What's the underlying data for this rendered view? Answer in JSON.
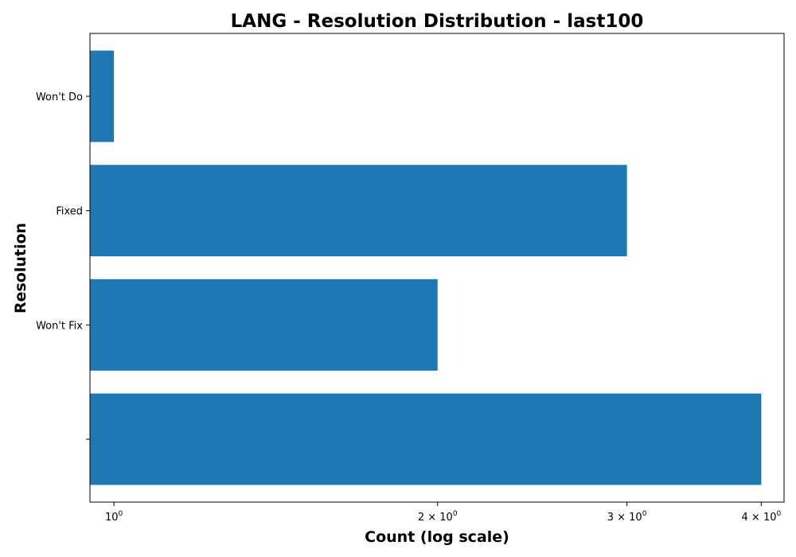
{
  "chart_data": {
    "type": "bar",
    "orientation": "horizontal",
    "title": "LANG - Resolution Distribution - last100",
    "xlabel": "Count (log scale)",
    "ylabel": "Resolution",
    "x_scale": "log",
    "xlim": [
      0.95,
      4.2
    ],
    "categories": [
      "",
      "Won't Fix",
      "Fixed",
      "Won't Do"
    ],
    "values": [
      4,
      2,
      3,
      1
    ],
    "x_ticks": [
      {
        "value": 1,
        "base": "10",
        "exp": "0"
      },
      {
        "value": 2,
        "base": "2 × 10",
        "exp": "0"
      },
      {
        "value": 3,
        "base": "3 × 10",
        "exp": "0"
      },
      {
        "value": 4,
        "base": "4 × 10",
        "exp": "0"
      }
    ],
    "bar_color": "#1f77b4",
    "grid": false,
    "legend": "none"
  }
}
